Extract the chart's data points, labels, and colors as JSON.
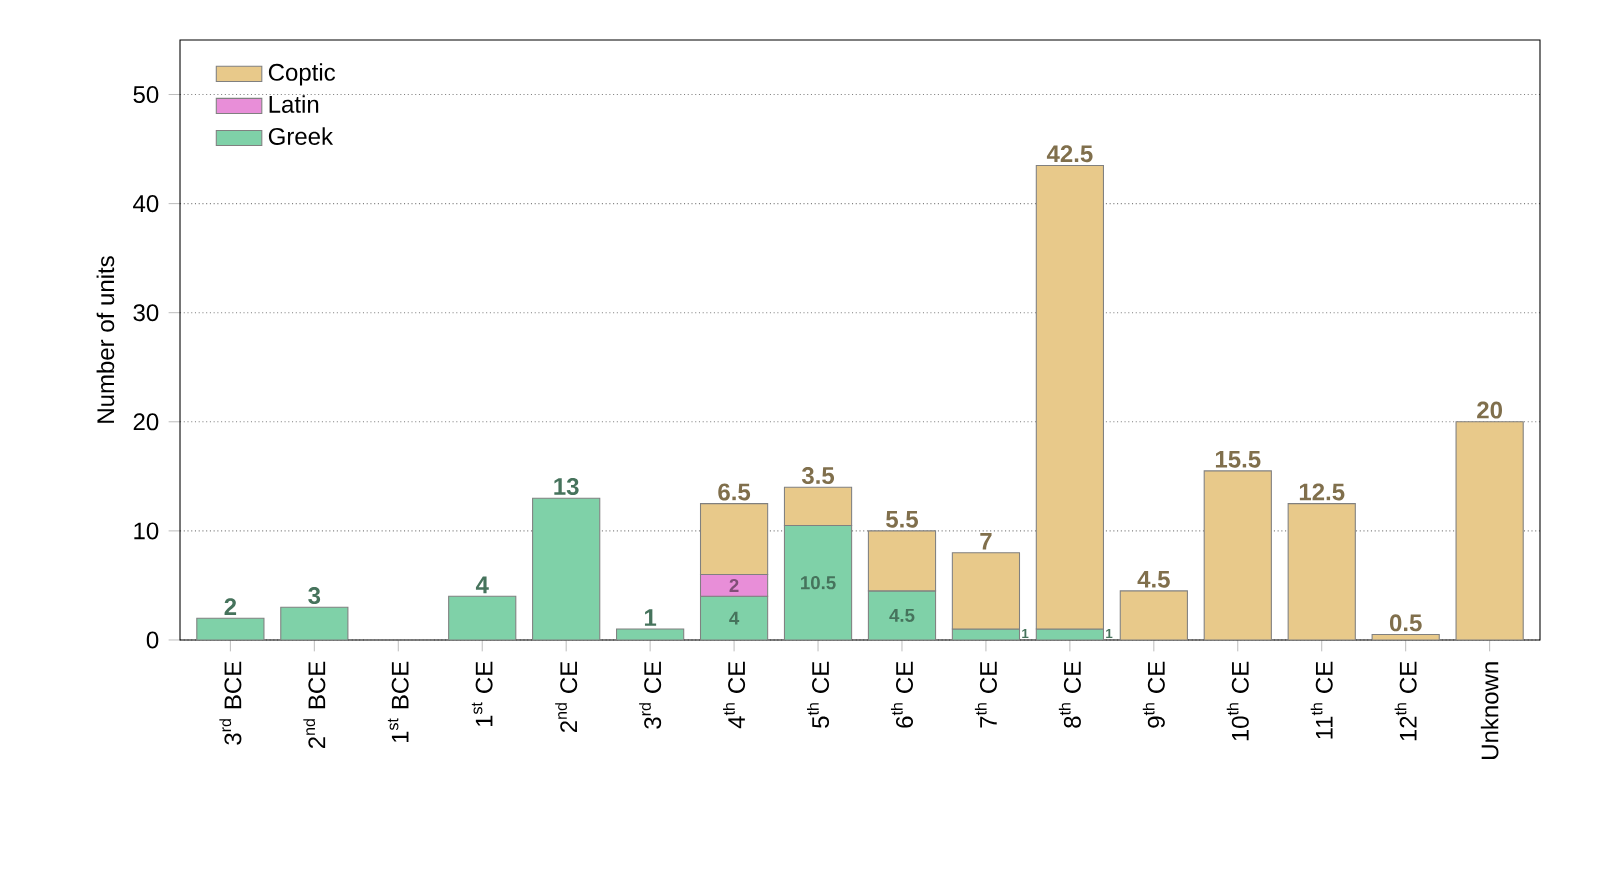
{
  "chart_data": {
    "type": "bar",
    "stacked": true,
    "ylabel": "Number of units",
    "categories": [
      "3$^{rd}$ BCE",
      "2$^{nd}$ BCE",
      "1$^{st}$ BCE",
      "1$^{st}$ CE",
      "2$^{nd}$ CE",
      "3$^{rd}$ CE",
      "4$^{th}$ CE",
      "5$^{th}$ CE",
      "6$^{th}$ CE",
      "7$^{th}$ CE",
      "8$^{th}$ CE",
      "9$^{th}$ CE",
      "10$^{th}$ CE",
      "11$^{th}$ CE",
      "12$^{th}$ CE",
      "Unknown"
    ],
    "series": [
      {
        "name": "Greek",
        "color": "#7fd1a8",
        "values": [
          2,
          3,
          0,
          4,
          13,
          1,
          4,
          10.5,
          4.5,
          1,
          1,
          null,
          null,
          null,
          null,
          null
        ],
        "value_labels": [
          "2",
          "3",
          null,
          "4",
          "13",
          "1",
          "4",
          "10.5",
          "4.5",
          "1",
          "1",
          null,
          null,
          null,
          null,
          null
        ]
      },
      {
        "name": "Latin",
        "color": "#e88ed8",
        "values": [
          null,
          null,
          null,
          null,
          null,
          null,
          2,
          null,
          null,
          null,
          null,
          null,
          null,
          null,
          null,
          null
        ],
        "value_labels": [
          null,
          null,
          null,
          null,
          null,
          null,
          "2",
          null,
          null,
          null,
          null,
          null,
          null,
          null,
          null,
          null
        ]
      },
      {
        "name": "Coptic",
        "color": "#e8c98a",
        "values": [
          null,
          null,
          null,
          null,
          null,
          null,
          6.5,
          3.5,
          5.5,
          7,
          42.5,
          4.5,
          15.5,
          12.5,
          0.5,
          20
        ],
        "value_labels": [
          null,
          null,
          null,
          null,
          null,
          null,
          "6.5",
          "3.5",
          "5.5",
          "7",
          "42.5",
          "4.5",
          "15.5",
          "12.5",
          "0.5",
          "20"
        ]
      }
    ],
    "ylim": [
      0,
      55
    ],
    "yticks": [
      0,
      10,
      20,
      30,
      40,
      50
    ],
    "grid": "y",
    "legend": "top left"
  }
}
